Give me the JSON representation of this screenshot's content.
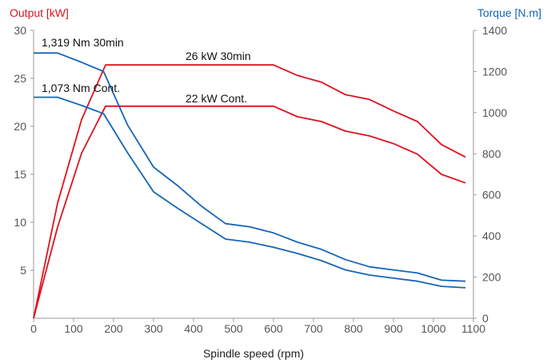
{
  "chart_data": {
    "type": "line",
    "xlabel": "Spindle speed (rpm)",
    "ylabel_left": "Output [kW]",
    "ylabel_right": "Torque [N.m]",
    "xlim": [
      0,
      1100
    ],
    "ylim_left": [
      0,
      30
    ],
    "ylim_right": [
      0,
      1400
    ],
    "x_ticks": [
      "0",
      "100",
      "200",
      "300",
      "400",
      "500",
      "600",
      "700",
      "800",
      "900",
      "1000",
      "1100"
    ],
    "y_ticks_left": [
      "5",
      "10",
      "15",
      "20",
      "25",
      "30"
    ],
    "y_ticks_right": [
      "0",
      "200",
      "400",
      "600",
      "800",
      "1000",
      "1200",
      "1400"
    ],
    "grid": false,
    "colors": {
      "output": "#e0111f",
      "torque": "#1565b8",
      "axis": "#9a9a9a"
    },
    "annotations": {
      "torque_30min": "1,319 Nm 30min",
      "torque_cont": "1,073 Nm Cont.",
      "output_30min": "26 kW 30min",
      "output_cont": "22 kW Cont."
    },
    "series": [
      {
        "axis": "left",
        "color": "#e0111f",
        "x": [
          0,
          60,
          120,
          180,
          240,
          300,
          360,
          420,
          480,
          540,
          600,
          660,
          720,
          780,
          840,
          900,
          960,
          1020,
          1080
        ],
        "values": [
          0,
          12,
          20.7,
          26.4,
          26.4,
          26.4,
          26.4,
          26.4,
          26.4,
          26.4,
          26.4,
          25.3,
          24.6,
          23.3,
          22.8,
          21.6,
          20.5,
          18.1,
          16.8
        ]
      },
      {
        "axis": "left",
        "color": "#e0111f",
        "x": [
          0,
          60,
          120,
          180,
          240,
          300,
          360,
          420,
          480,
          540,
          600,
          660,
          720,
          780,
          840,
          900,
          960,
          1020,
          1080
        ],
        "values": [
          0,
          9.5,
          17.2,
          22.1,
          22.1,
          22.1,
          22.1,
          22.1,
          22.1,
          22.1,
          22.1,
          21.0,
          20.5,
          19.5,
          19.0,
          18.2,
          17.1,
          15.0,
          14.1
        ]
      },
      {
        "axis": "right",
        "color": "#1565b8",
        "x": [
          0,
          60,
          120,
          175,
          235,
          300,
          360,
          420,
          480,
          540,
          600,
          660,
          720,
          780,
          840,
          900,
          960,
          1020,
          1080
        ],
        "values": [
          1290,
          1290,
          1245,
          1200,
          940,
          735,
          645,
          545,
          460,
          445,
          415,
          370,
          335,
          285,
          250,
          235,
          220,
          185,
          180
        ]
      },
      {
        "axis": "right",
        "color": "#1565b8",
        "x": [
          0,
          60,
          120,
          175,
          235,
          300,
          360,
          420,
          480,
          540,
          600,
          660,
          720,
          780,
          840,
          900,
          960,
          1020,
          1080
        ],
        "values": [
          1075,
          1075,
          1035,
          995,
          805,
          615,
          535,
          460,
          385,
          370,
          345,
          315,
          280,
          235,
          210,
          195,
          180,
          155,
          148
        ]
      }
    ]
  }
}
